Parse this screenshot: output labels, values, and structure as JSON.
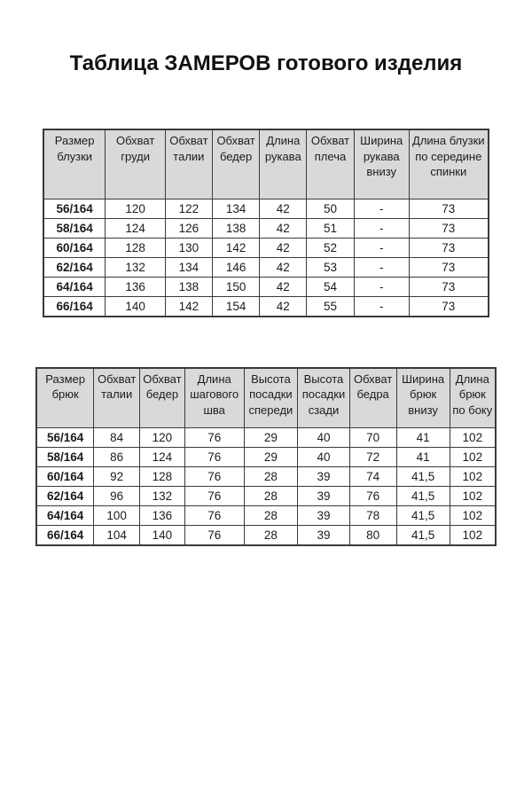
{
  "page": {
    "title": "Таблица ЗАМЕРОВ готового изделия"
  },
  "colors": {
    "header_bg": "#d9d9d9",
    "border": "#3a3a3a",
    "text": "#1c1c1c",
    "page_bg": "#ffffff"
  },
  "blouse_table": {
    "headers": [
      "Размер блузки",
      "Обхват груди",
      "Обхват талии",
      "Обхват бедер",
      "Длина рукава",
      "Обхват плеча",
      "Ширина рукава внизу",
      "Длина блузки по середине спинки"
    ],
    "rows": [
      [
        "56/164",
        "120",
        "122",
        "134",
        "42",
        "50",
        "-",
        "73"
      ],
      [
        "58/164",
        "124",
        "126",
        "138",
        "42",
        "51",
        "-",
        "73"
      ],
      [
        "60/164",
        "128",
        "130",
        "142",
        "42",
        "52",
        "-",
        "73"
      ],
      [
        "62/164",
        "132",
        "134",
        "146",
        "42",
        "53",
        "-",
        "73"
      ],
      [
        "64/164",
        "136",
        "138",
        "150",
        "42",
        "54",
        "-",
        "73"
      ],
      [
        "66/164",
        "140",
        "142",
        "154",
        "42",
        "55",
        "-",
        "73"
      ]
    ]
  },
  "trousers_table": {
    "headers": [
      "Размер брюк",
      "Обхват талии",
      "Обхват бедер",
      "Длина шагового шва",
      "Высота посадки спереди",
      "Высота посадки сзади",
      "Обхват бедра",
      "Ширина брюк внизу",
      "Длина брюк по боку"
    ],
    "rows": [
      [
        "56/164",
        "84",
        "120",
        "76",
        "29",
        "40",
        "70",
        "41",
        "102"
      ],
      [
        "58/164",
        "86",
        "124",
        "76",
        "29",
        "40",
        "72",
        "41",
        "102"
      ],
      [
        "60/164",
        "92",
        "128",
        "76",
        "28",
        "39",
        "74",
        "41,5",
        "102"
      ],
      [
        "62/164",
        "96",
        "132",
        "76",
        "28",
        "39",
        "76",
        "41,5",
        "102"
      ],
      [
        "64/164",
        "100",
        "136",
        "76",
        "28",
        "39",
        "78",
        "41,5",
        "102"
      ],
      [
        "66/164",
        "104",
        "140",
        "76",
        "28",
        "39",
        "80",
        "41,5",
        "102"
      ]
    ]
  }
}
